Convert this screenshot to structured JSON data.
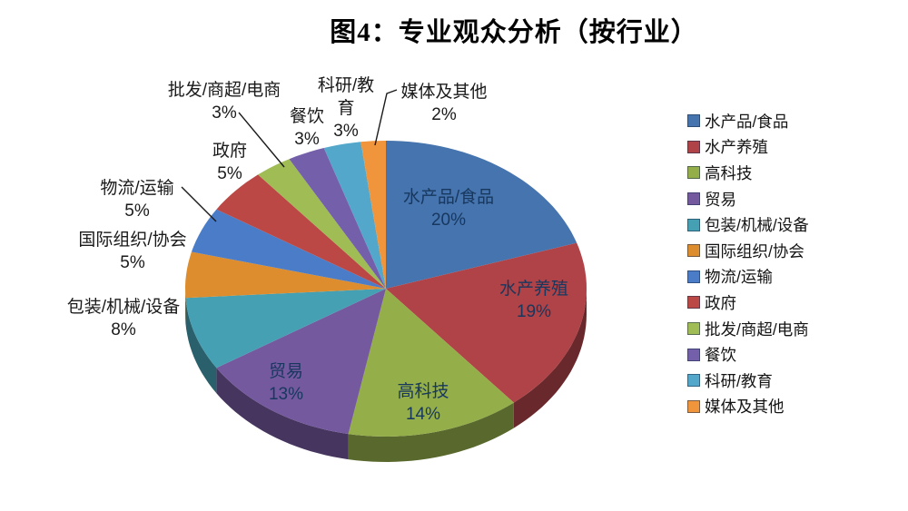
{
  "chart_data": {
    "type": "pie",
    "title": "图4：专业观众分析（按行业）",
    "effect_3d": true,
    "legend_position": "right",
    "unit": "%",
    "categories": [
      "水产品/食品",
      "水产养殖",
      "高科技",
      "贸易",
      "包装/机械/设备",
      "国际组织/协会",
      "物流/运输",
      "政府",
      "批发/商超/电商",
      "餐饮",
      "科研/教育",
      "媒体及其他"
    ],
    "values": [
      20,
      19,
      14,
      13,
      8,
      5,
      5,
      5,
      3,
      3,
      3,
      2
    ],
    "colors": [
      "#4674AE",
      "#AF4347",
      "#94AE4A",
      "#75599F",
      "#46A0B3",
      "#DD8D2D",
      "#4A7CC7",
      "#BC4846",
      "#A0BC55",
      "#7460AA",
      "#52A7CB",
      "#F0953B"
    ],
    "label_text_colors": {
      "inside": "#17375E",
      "outside": "#1A1A1A"
    },
    "labels": [
      {
        "lines": [
          "水产品/食品",
          "20%"
        ],
        "placement": "inside"
      },
      {
        "lines": [
          "水产养殖",
          "19%"
        ],
        "placement": "inside"
      },
      {
        "lines": [
          "高科技",
          "14%"
        ],
        "placement": "inside"
      },
      {
        "lines": [
          "贸易",
          "13%"
        ],
        "placement": "inside"
      },
      {
        "lines": [
          "包装/机械/设备",
          "8%"
        ],
        "placement": "outside"
      },
      {
        "lines": [
          "国际组织/协会",
          "5%"
        ],
        "placement": "outside"
      },
      {
        "lines": [
          "物流/运输",
          "5%"
        ],
        "placement": "outside"
      },
      {
        "lines": [
          "政府",
          "5%"
        ],
        "placement": "outside"
      },
      {
        "lines": [
          "批发/商超/电商",
          "3%"
        ],
        "placement": "outside"
      },
      {
        "lines": [
          "餐饮",
          "3%"
        ],
        "placement": "outside"
      },
      {
        "lines": [
          "科研/教",
          "育",
          "3%"
        ],
        "placement": "outside"
      },
      {
        "lines": [
          "媒体及其他",
          "2%"
        ],
        "placement": "outside"
      }
    ]
  }
}
